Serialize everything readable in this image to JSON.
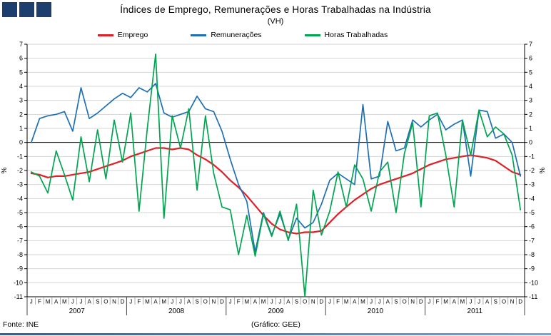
{
  "header": {
    "title": "Índices de Emprego, Remunerações e Horas Trabalhadas na Indústria",
    "subtitle": "(VH)"
  },
  "footer": {
    "source": "Fonte: INE",
    "credit": "(Gráfico: GEE)"
  },
  "axes": {
    "left_unit": "%",
    "right_unit": "%"
  },
  "colors": {
    "logo_square": "#1c3f6e",
    "grid": "#d4d4d4",
    "axis": "#000000"
  },
  "chart_data": {
    "type": "line",
    "title": "Índices de Emprego, Remunerações e Horas Trabalhadas na Indústria (VH)",
    "ylabel": "%",
    "ylim": [
      -11,
      7
    ],
    "yticks": [
      7,
      6,
      5,
      4,
      3,
      2,
      1,
      0,
      -1,
      -2,
      -3,
      -4,
      -5,
      -6,
      -7,
      -8,
      -9,
      -10,
      -11
    ],
    "grid": true,
    "legend_position": "top",
    "month_labels": [
      "J",
      "F",
      "M",
      "A",
      "M",
      "J",
      "J",
      "A",
      "S",
      "O",
      "N",
      "D"
    ],
    "years": [
      "2007",
      "2008",
      "2009",
      "2010",
      "2011"
    ],
    "series": [
      {
        "name": "Emprego",
        "color": "#e01f26",
        "width": 2.2,
        "values": [
          -2.2,
          -2.3,
          -2.5,
          -2.4,
          -2.4,
          -2.3,
          -2.2,
          -2.1,
          -1.9,
          -1.7,
          -1.5,
          -1.3,
          -1.0,
          -0.8,
          -0.6,
          -0.4,
          -0.4,
          -0.5,
          -0.4,
          -0.5,
          -0.9,
          -1.2,
          -1.6,
          -2.1,
          -2.7,
          -3.2,
          -3.8,
          -4.5,
          -5.2,
          -5.8,
          -6.2,
          -6.4,
          -6.5,
          -6.4,
          -6.4,
          -6.3,
          -5.7,
          -5.1,
          -4.6,
          -4.1,
          -3.7,
          -3.3,
          -3.0,
          -2.8,
          -2.6,
          -2.4,
          -2.2,
          -1.9,
          -1.6,
          -1.4,
          -1.2,
          -1.1,
          -1.0,
          -0.9,
          -1.0,
          -1.1,
          -1.3,
          -1.7,
          -2.1,
          -2.3
        ]
      },
      {
        "name": "Remunerações",
        "color": "#1f6fb5",
        "width": 1.7,
        "values": [
          0.0,
          1.7,
          1.9,
          2.0,
          2.2,
          0.8,
          3.9,
          1.7,
          2.1,
          2.6,
          3.1,
          3.5,
          3.2,
          3.9,
          3.6,
          4.2,
          2.1,
          1.8,
          2.0,
          2.2,
          3.3,
          2.4,
          2.2,
          0.8,
          -1.2,
          -3.0,
          -4.2,
          -7.8,
          -5.0,
          -6.6,
          -5.1,
          -6.9,
          -5.4,
          -6.1,
          -5.7,
          -4.4,
          -2.7,
          -2.2,
          -2.6,
          -3.0,
          2.7,
          -2.6,
          -2.4,
          1.5,
          -0.6,
          -0.4,
          1.6,
          1.1,
          1.6,
          2.0,
          0.9,
          1.3,
          1.6,
          -2.4,
          2.3,
          2.2,
          0.3,
          0.6,
          0.0,
          -2.4
        ]
      },
      {
        "name": "Horas Trabalhadas",
        "color": "#00a551",
        "width": 1.7,
        "values": [
          -2.1,
          -2.4,
          -3.6,
          -0.6,
          -2.3,
          -4.1,
          0.4,
          -2.8,
          0.9,
          -2.6,
          1.6,
          -1.4,
          2.1,
          -4.9,
          1.0,
          6.3,
          -5.4,
          1.9,
          -0.4,
          2.4,
          -3.4,
          1.9,
          -2.2,
          -4.6,
          -4.8,
          -8.0,
          -5.2,
          -8.1,
          -5.1,
          -6.7,
          -4.9,
          -7.0,
          -4.4,
          -11.0,
          -3.4,
          -6.6,
          -4.9,
          -2.1,
          -4.6,
          -1.6,
          -2.6,
          -4.9,
          -2.1,
          -1.4,
          -5.0,
          -0.8,
          1.4,
          -4.6,
          1.9,
          2.1,
          -0.9,
          -4.6,
          1.6,
          -0.9,
          2.3,
          0.4,
          1.1,
          0.6,
          -0.9,
          -4.8
        ]
      }
    ]
  }
}
